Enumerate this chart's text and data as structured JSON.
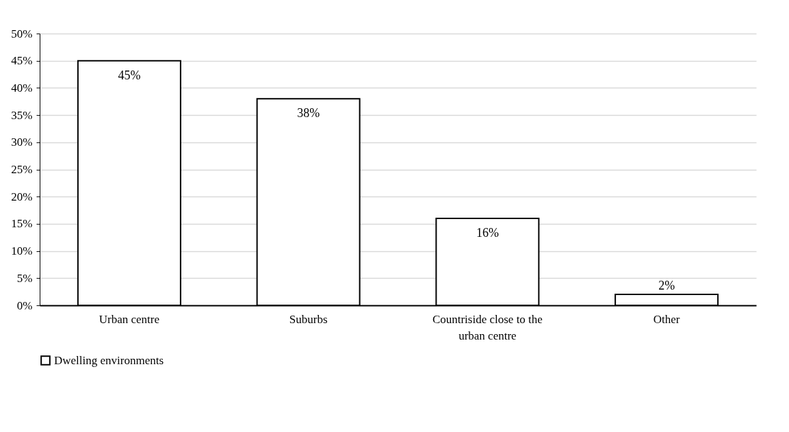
{
  "chart_data": {
    "type": "bar",
    "categories": [
      "Urban centre",
      "Suburbs",
      "Countriside close to the urban centre",
      "Other"
    ],
    "series": [
      {
        "name": "Dwelling environments",
        "color": "#ffffff",
        "values": [
          45,
          38,
          16,
          2
        ],
        "value_labels": [
          "45%",
          "38%",
          "16%",
          "2%"
        ]
      }
    ],
    "ylim": [
      0,
      50
    ],
    "yticks": [
      {
        "value": 0,
        "label": "0%"
      },
      {
        "value": 5,
        "label": "5%"
      },
      {
        "value": 10,
        "label": "10%"
      },
      {
        "value": 15,
        "label": "15%"
      },
      {
        "value": 20,
        "label": "20%"
      },
      {
        "value": 25,
        "label": "25%"
      },
      {
        "value": 30,
        "label": "30%"
      },
      {
        "value": 35,
        "label": "35%"
      },
      {
        "value": 40,
        "label": "40%"
      },
      {
        "value": 45,
        "label": "45%"
      },
      {
        "value": 50,
        "label": "50%"
      }
    ],
    "grid": "y",
    "legend": "bottom"
  }
}
